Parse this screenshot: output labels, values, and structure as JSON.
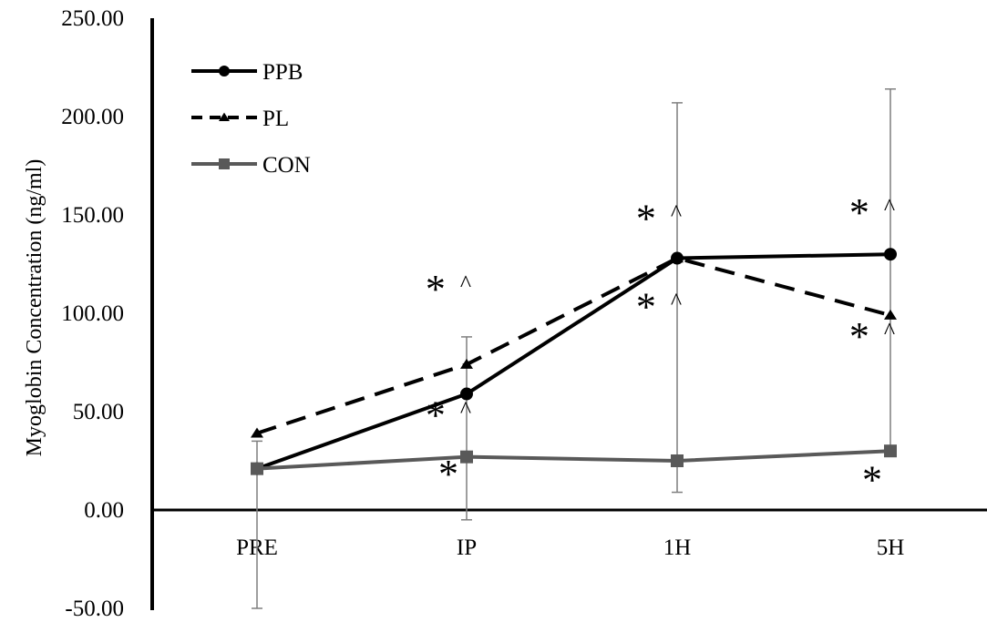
{
  "chart_data": {
    "type": "line",
    "ylabel": "Myoglobin Concentration (ng/ml)",
    "xlabel": "",
    "title": "",
    "categories": [
      "PRE",
      "IP",
      "1H",
      "5H"
    ],
    "ylim": [
      -50,
      250
    ],
    "yticks": [
      "250.00",
      "200.00",
      "150.00",
      "100.00",
      "50.00",
      "0.00",
      "-50.00"
    ],
    "grid": false,
    "legend": "top-left",
    "series": [
      {
        "name": "PPB",
        "values": [
          21,
          59,
          128,
          130
        ],
        "error_bars": [
          {
            "low": 20,
            "high": 21
          },
          {
            "low": 59,
            "high": 59
          },
          {
            "low": 128,
            "high": 128
          },
          {
            "low": 130,
            "high": 130
          }
        ],
        "color": "#000000",
        "line": "solid",
        "marker": "circle"
      },
      {
        "name": "PL",
        "values": [
          39,
          74,
          128,
          99
        ],
        "error_bars": [
          {
            "low": 39,
            "high": 39
          },
          {
            "low": 74,
            "high": 74
          },
          {
            "low": 128,
            "high": 128
          },
          {
            "low": 99,
            "high": 99
          }
        ],
        "color": "#000000",
        "line": "dashed",
        "marker": "triangle"
      },
      {
        "name": "CON",
        "values": [
          21,
          27,
          25,
          30
        ],
        "error_bars": [
          {
            "low": -50,
            "high": 35
          },
          {
            "low": -5,
            "high": 88
          },
          {
            "low": 9,
            "high": 207
          },
          {
            "low": 31,
            "high": 214
          }
        ],
        "color": "#595959",
        "line": "solid",
        "marker": "square"
      }
    ],
    "annotations": [
      {
        "text": "* ^",
        "category": "IP",
        "value": 112
      },
      {
        "text": "* ^",
        "category": "IP",
        "value": 48
      },
      {
        "text": "*",
        "category": "IP",
        "value": 18
      },
      {
        "text": "* ^",
        "category": "1H",
        "value": 148
      },
      {
        "text": "* ^",
        "category": "1H",
        "value": 103
      },
      {
        "text": "* ^",
        "category": "5H",
        "value": 151
      },
      {
        "text": "* ^",
        "category": "5H",
        "value": 88
      },
      {
        "text": "*",
        "category": "5H",
        "value": 15
      }
    ]
  }
}
